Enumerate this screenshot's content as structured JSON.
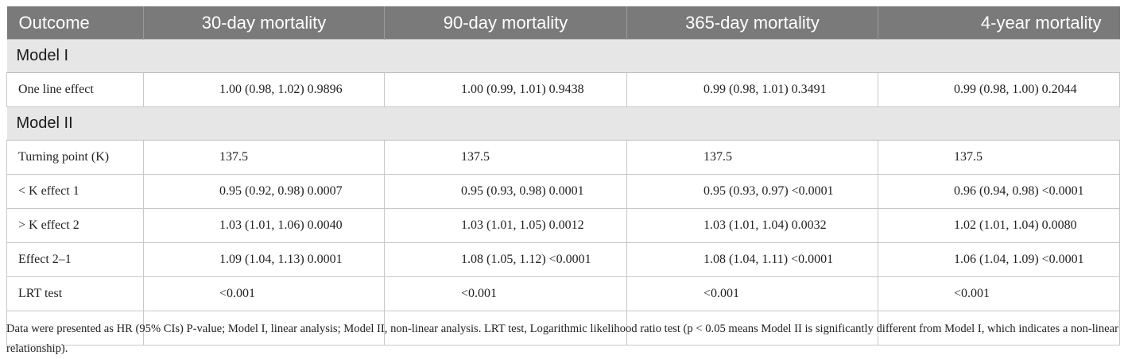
{
  "table": {
    "headers": [
      "Outcome",
      "30-day mortality",
      "90-day mortality",
      "365-day mortality",
      "4-year mortality"
    ],
    "sections": [
      {
        "title": "Model I",
        "rows": [
          {
            "label": "One line effect",
            "values": [
              "1.00 (0.98, 1.02) 0.9896",
              "1.00 (0.99, 1.01) 0.9438",
              "0.99 (0.98, 1.01) 0.3491",
              "0.99 (0.98, 1.00) 0.2044"
            ]
          }
        ]
      },
      {
        "title": "Model II",
        "rows": [
          {
            "label": "Turning point (K)",
            "values": [
              "137.5",
              "137.5",
              "137.5",
              "137.5"
            ]
          },
          {
            "label": "< K effect 1",
            "values": [
              "0.95 (0.92, 0.98) 0.0007",
              "0.95 (0.93, 0.98) 0.0001",
              "0.95 (0.93, 0.97) <0.0001",
              "0.96 (0.94, 0.98) <0.0001"
            ]
          },
          {
            "label": "> K effect 2",
            "values": [
              "1.03 (1.01, 1.06) 0.0040",
              "1.03 (1.01, 1.05) 0.0012",
              "1.03 (1.01, 1.04) 0.0032",
              "1.02 (1.01, 1.04) 0.0080"
            ]
          },
          {
            "label": "Effect 2–1",
            "values": [
              "1.09 (1.04, 1.13) 0.0001",
              "1.08 (1.05, 1.12) <0.0001",
              "1.08 (1.04, 1.11) <0.0001",
              "1.06 (1.04, 1.09) <0.0001"
            ]
          },
          {
            "label": "LRT test",
            "values": [
              "<0.001",
              "<0.001",
              "<0.001",
              "<0.001"
            ]
          }
        ]
      }
    ]
  },
  "footnote": "Data were presented as HR (95% CIs) P-value; Model I, linear analysis; Model II, non-linear analysis. LRT test, Logarithmic likelihood ratio test (p < 0.05 means Model II is significantly different from Model I, which indicates a non-linear relationship).",
  "colors": {
    "header_bg": "#7a7a7a",
    "section_bg": "#e6e6e6",
    "border": "#c8c8c8"
  }
}
